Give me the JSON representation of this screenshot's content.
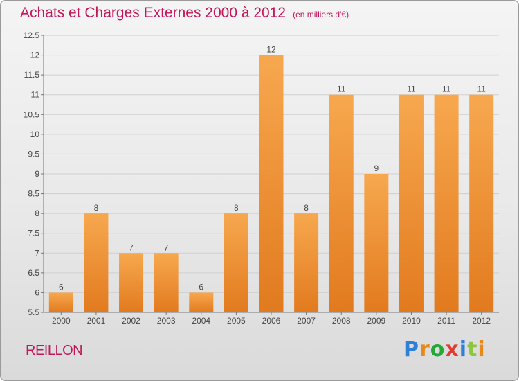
{
  "header": {
    "title": "Achats et Charges Externes 2000 à 2012",
    "unit": "(en milliers d'€)"
  },
  "footer": {
    "commune": "REILLON",
    "logo_letters": [
      "P",
      "r",
      "o",
      "x",
      "i",
      "t",
      "i"
    ],
    "logo_colors": [
      "#2e7fd6",
      "#e8891a",
      "#27a63a",
      "#e03c31",
      "#2e7fd6",
      "#8cc63f",
      "#e8891a"
    ]
  },
  "colors": {
    "bar_top": "#f7a84f",
    "bar_bottom": "#e27a1e",
    "title": "#c2185b",
    "grid": "#cfcfcf",
    "axis": "#777777"
  },
  "chart_data": {
    "type": "bar",
    "categories": [
      "2000",
      "2001",
      "2002",
      "2003",
      "2004",
      "2005",
      "2006",
      "2007",
      "2008",
      "2009",
      "2010",
      "2011",
      "2012"
    ],
    "values": [
      6,
      8,
      7,
      7,
      6,
      8,
      12,
      8,
      11,
      9,
      11,
      11,
      11
    ],
    "data_labels": [
      "6",
      "8",
      "7",
      "7",
      "6",
      "8",
      "12",
      "8",
      "11",
      "9",
      "11",
      "11",
      "11"
    ],
    "yticks": [
      "5.5",
      "6",
      "6.5",
      "7",
      "7.5",
      "8",
      "8.5",
      "9",
      "9.5",
      "10",
      "10.5",
      "11",
      "11.5",
      "12",
      "12.5"
    ],
    "ylim": [
      5.5,
      12.5
    ],
    "grid": true
  }
}
